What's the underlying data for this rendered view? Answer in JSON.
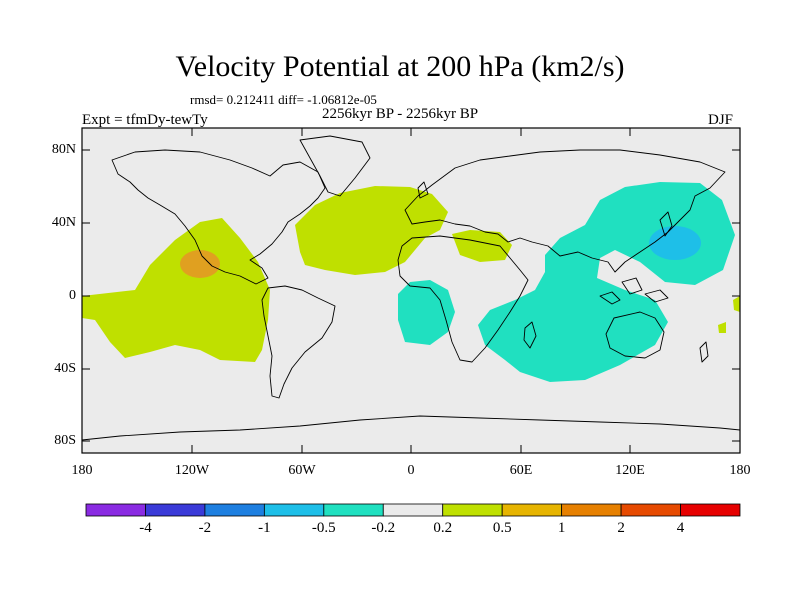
{
  "header": {
    "title": "Velocity Potential at 200 hPa (km2/s)",
    "stats": "rmsd= 0.212411 diff= -1.06812e-05",
    "period": "2256kyr BP - 2256kyr BP",
    "experiment": "Expt = tfmDy-tewTy",
    "season": "DJF"
  },
  "axes": {
    "lat_labels": [
      "80N",
      "40N",
      "0",
      "40S",
      "80S"
    ],
    "lon_labels": [
      "180",
      "120W",
      "60W",
      "0",
      "60E",
      "120E",
      "180"
    ]
  },
  "legend": {
    "colors": [
      "#8a2be2",
      "#3a3ad8",
      "#1e7fe0",
      "#1ebfe8",
      "#20e0c0",
      "#ebebeb",
      "#bfe000",
      "#e6b400",
      "#e68000",
      "#e64a00",
      "#e60000"
    ],
    "labels": [
      "-4",
      "-2",
      "-1",
      "-0.5",
      "-0.2",
      "0.2",
      "0.5",
      "1",
      "2",
      "4"
    ]
  },
  "colors": {
    "background": "#ebebeb",
    "positive_light": "#bfe000",
    "positive_mid": "#e0a020",
    "negative_light": "#20e0c0",
    "negative_mid": "#1ebfe8"
  }
}
